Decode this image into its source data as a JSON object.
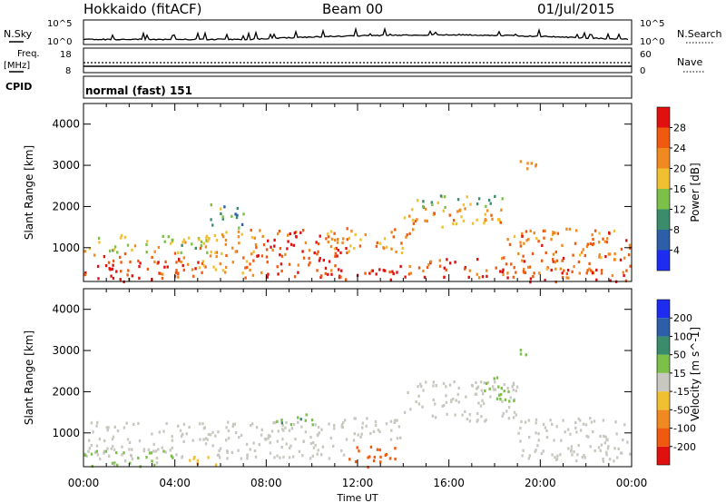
{
  "header": {
    "radar": "Hokkaido (fitACF)",
    "beam": "Beam 00",
    "date": "01/Jul/2015"
  },
  "status_panels": {
    "nsky_label": "N.Sky",
    "nsky_ticks": [
      "10^5",
      "10^0"
    ],
    "nsearch_label": "N.Search",
    "nsearch_ticks": [
      "10^5",
      "10^0"
    ],
    "freq_label_1": "Freq.",
    "freq_label_2": "[MHz]",
    "freq_ticks": [
      "18",
      "8"
    ],
    "nave_label": "Nave",
    "nave_ticks": [
      "60",
      "0"
    ],
    "cpid_label": "CPID",
    "cpid_value": "normal (fast) 151"
  },
  "colors": {
    "power_scale": [
      "#1e2cf0",
      "#2c5fa8",
      "#3a8c6a",
      "#7cc04a",
      "#f0c030",
      "#f08a20",
      "#f05a10",
      "#e01010"
    ],
    "velocity_scale": [
      "#e01010",
      "#f05a10",
      "#f08a20",
      "#f0c030",
      "#c8c8c0",
      "#7cc04a",
      "#3a8c6a",
      "#2c5fa8",
      "#1e2cf0"
    ]
  },
  "chart_data": [
    {
      "type": "heatmap",
      "name": "power",
      "ylabel": "Slant Range [km]",
      "xlabel": "Time UT",
      "x_ticks": [
        "00:00",
        "04:00",
        "08:00",
        "12:00",
        "16:00",
        "20:00",
        "00:00"
      ],
      "y_ticks": [
        "1000",
        "2000",
        "3000",
        "4000"
      ],
      "xlim_hours": [
        0,
        24
      ],
      "ylim_km": [
        180,
        4500
      ],
      "colorbar_label": "Power [dB]",
      "colorbar_ticks": [
        "4",
        "8",
        "12",
        "16",
        "20",
        "24",
        "28"
      ],
      "regions": [
        {
          "t0": 0.0,
          "t1": 5.0,
          "r0": 200,
          "r1": 900,
          "v": 27
        },
        {
          "t0": 0.0,
          "t1": 5.5,
          "r0": 900,
          "r1": 1350,
          "v": 16
        },
        {
          "t0": 5.0,
          "t1": 7.5,
          "r0": 400,
          "r1": 1500,
          "v": 21
        },
        {
          "t0": 5.5,
          "t1": 7.0,
          "r0": 1500,
          "r1": 2100,
          "v": 12
        },
        {
          "t0": 7.0,
          "t1": 11.5,
          "r0": 300,
          "r1": 1100,
          "v": 27
        },
        {
          "t0": 7.5,
          "t1": 10.5,
          "r0": 1100,
          "r1": 1500,
          "v": 28
        },
        {
          "t0": 10.5,
          "t1": 14.5,
          "r0": 900,
          "r1": 1500,
          "v": 22
        },
        {
          "t0": 11.0,
          "t1": 15.0,
          "r0": 250,
          "r1": 600,
          "v": 28
        },
        {
          "t0": 14.0,
          "t1": 18.5,
          "r0": 1500,
          "r1": 2000,
          "v": 21
        },
        {
          "t0": 14.5,
          "t1": 18.5,
          "r0": 2000,
          "r1": 2300,
          "v": 14
        },
        {
          "t0": 15.0,
          "t1": 19.0,
          "r0": 300,
          "r1": 800,
          "v": 27
        },
        {
          "t0": 18.5,
          "t1": 23.9,
          "r0": 400,
          "r1": 1500,
          "v": 24
        },
        {
          "t0": 19.0,
          "t1": 23.9,
          "r0": 200,
          "r1": 500,
          "v": 28
        },
        {
          "t0": 19.0,
          "t1": 19.8,
          "r0": 2800,
          "r1": 3200,
          "v": 24
        }
      ]
    },
    {
      "type": "heatmap",
      "name": "velocity",
      "ylabel": "Slant Range [km]",
      "xlabel": "Time UT",
      "x_ticks": [
        "00:00",
        "04:00",
        "08:00",
        "12:00",
        "16:00",
        "20:00",
        "00:00"
      ],
      "y_ticks": [
        "1000",
        "2000",
        "3000",
        "4000"
      ],
      "xlim_hours": [
        0,
        24
      ],
      "ylim_km": [
        180,
        4500
      ],
      "colorbar_label": "Velocity [m s^-1]",
      "colorbar_ticks": [
        "-200",
        "-100",
        "-50",
        "-15",
        "15",
        "50",
        "100",
        "200"
      ],
      "regions": [
        {
          "t0": 0.0,
          "t1": 11.5,
          "r0": 400,
          "r1": 1300,
          "v": 0
        },
        {
          "t0": 0.0,
          "t1": 4.0,
          "r0": 200,
          "r1": 600,
          "v": 20
        },
        {
          "t0": 4.5,
          "t1": 5.8,
          "r0": 200,
          "r1": 500,
          "v": -40
        },
        {
          "t0": 8.2,
          "t1": 10.0,
          "r0": 1200,
          "r1": 1500,
          "v": 40
        },
        {
          "t0": 11.5,
          "t1": 13.0,
          "r0": 200,
          "r1": 700,
          "v": -180
        },
        {
          "t0": 11.0,
          "t1": 14.0,
          "r0": 800,
          "r1": 1400,
          "v": 0
        },
        {
          "t0": 14.0,
          "t1": 19.0,
          "r0": 1300,
          "r1": 2300,
          "v": 0
        },
        {
          "t0": 17.5,
          "t1": 19.0,
          "r0": 1800,
          "r1": 2400,
          "v": 30
        },
        {
          "t0": 19.0,
          "t1": 23.9,
          "r0": 300,
          "r1": 1400,
          "v": 0
        },
        {
          "t0": 19.0,
          "t1": 19.6,
          "r0": 2900,
          "r1": 3200,
          "v": 30
        },
        {
          "t0": 13.0,
          "t1": 14.0,
          "r0": 400,
          "r1": 700,
          "v": -120
        }
      ]
    }
  ]
}
